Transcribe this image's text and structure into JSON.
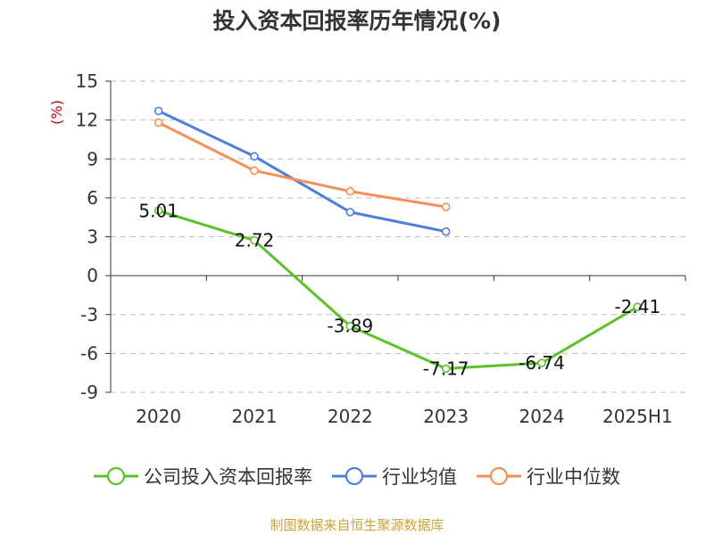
{
  "chart_data": {
    "type": "line",
    "title": "投入资本回报率历年情况(%)",
    "ylabel": "(%)",
    "categories": [
      "2020",
      "2021",
      "2022",
      "2023",
      "2024",
      "2025H1"
    ],
    "ylim": [
      -9,
      15
    ],
    "yticks": [
      15,
      12,
      9,
      6,
      3,
      0,
      -3,
      -6,
      -9
    ],
    "grid": true,
    "legend_position": "bottom",
    "series": [
      {
        "name": "公司投入资本回报率",
        "color": "#5cc12b",
        "values": [
          5.01,
          2.72,
          -3.89,
          -7.17,
          -6.74,
          -2.41
        ],
        "labels": [
          "5.01",
          "2.72",
          "-3.89",
          "-7.17",
          "-6.74",
          "-2.41"
        ]
      },
      {
        "name": "行业均值",
        "color": "#4e7fd8",
        "values": [
          12.7,
          9.2,
          4.9,
          3.4,
          null,
          null
        ]
      },
      {
        "name": "行业中位数",
        "color": "#f48f57",
        "values": [
          11.8,
          8.1,
          6.5,
          5.3,
          null,
          null
        ]
      }
    ],
    "source": "制图数据来自恒生聚源数据库"
  }
}
